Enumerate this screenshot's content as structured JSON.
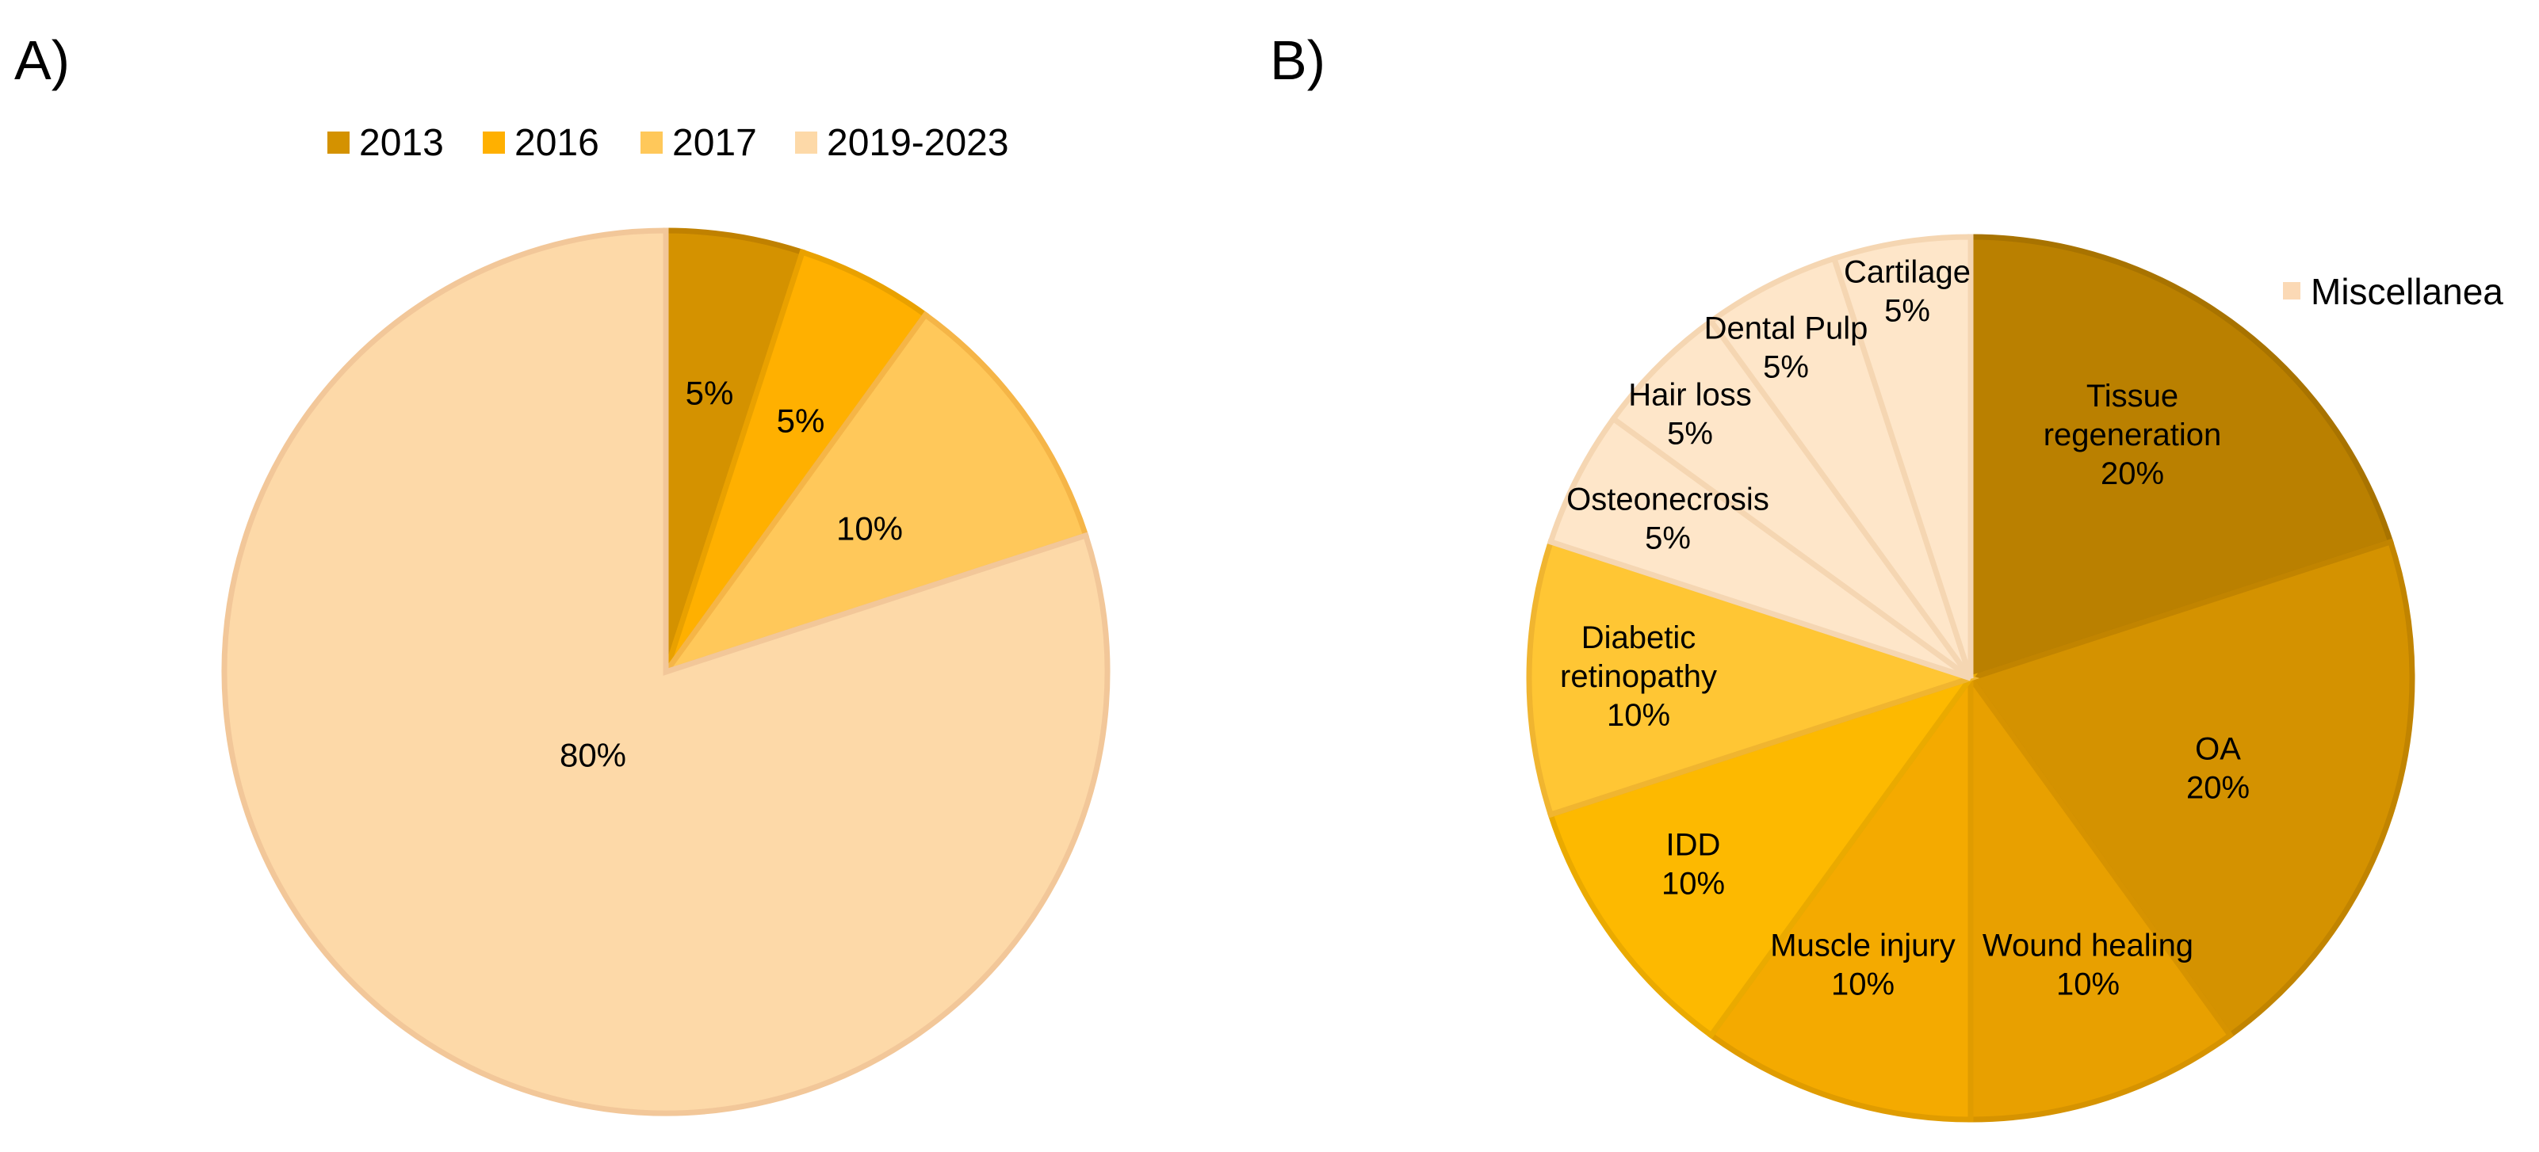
{
  "panel_labels": [
    "A)",
    "B)"
  ],
  "chart_data": [
    {
      "type": "pie",
      "panel": "A)",
      "title": "",
      "categories": [
        "2013",
        "2016",
        "2017",
        "2019-2023"
      ],
      "values": [
        5,
        5,
        10,
        80
      ],
      "labels": [
        "5%",
        "5%",
        "10%",
        "80%"
      ],
      "colors": [
        "#D49200",
        "#FFB000",
        "#FFC85A",
        "#FDD9A8"
      ],
      "stroke_colors": [
        "#C08100",
        "#E9A100",
        "#F5B547",
        "#F2C799"
      ],
      "legend": {
        "position": "top",
        "entries": [
          "2013",
          "2016",
          "2017",
          "2019-2023"
        ]
      }
    },
    {
      "type": "pie",
      "panel": "B)",
      "title": "",
      "categories": [
        "Tissue regeneration",
        "OA",
        "Wound healing",
        "Muscle injury",
        "IDD",
        "Diabetic retinopathy",
        "Osteonecrosis",
        "Hair loss",
        "Dental Pulp",
        "Cartilage"
      ],
      "values": [
        20,
        20,
        10,
        10,
        10,
        10,
        5,
        5,
        5,
        5
      ],
      "labels": [
        [
          "Tissue",
          "regeneration",
          "20%"
        ],
        [
          "OA",
          "20%"
        ],
        [
          "Wound healing",
          "10%"
        ],
        [
          "Muscle injury",
          "10%"
        ],
        [
          "IDD",
          "10%"
        ],
        [
          "Diabetic",
          "retinopathy",
          "10%"
        ],
        [
          "Osteonecrosis",
          "5%"
        ],
        [
          "Hair loss",
          "5%"
        ],
        [
          "Dental Pulp",
          "5%"
        ],
        [
          "Cartilage",
          "5%"
        ]
      ],
      "colors": [
        "#BA8000",
        "#D49200",
        "#E8A000",
        "#F4AA00",
        "#FDB900",
        "#FFC634",
        "#FEE6C9",
        "#FEE6C9",
        "#FEE6C9",
        "#FEE6C9"
      ],
      "stroke_colors": [
        "#A87300",
        "#C18400",
        "#D69300",
        "#E09C00",
        "#EAAA00",
        "#F0B530",
        "#F5D6B2",
        "#F5D6B2",
        "#F5D6B2",
        "#F5D6B2"
      ],
      "legend": {
        "position": "top-right",
        "entries": [
          "Miscellanea"
        ],
        "colors": [
          "#FBD9B5"
        ]
      }
    }
  ]
}
